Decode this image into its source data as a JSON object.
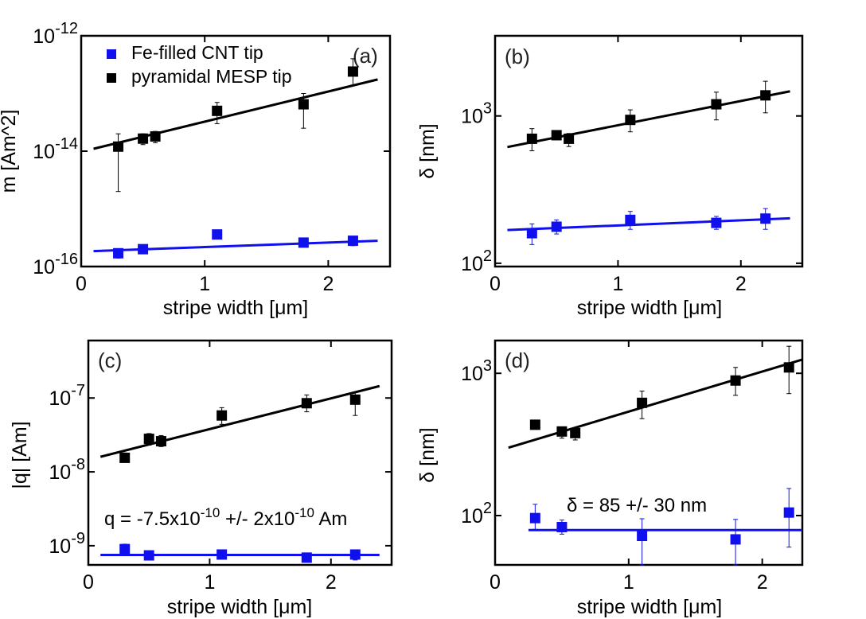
{
  "figure": {
    "colors": {
      "blue": "#1010ee",
      "black": "#000000"
    },
    "legend": [
      {
        "label": "Fe-filled CNT tip",
        "color": "#1010ee"
      },
      {
        "label": "pyramidal MESP tip",
        "color": "#000000"
      }
    ],
    "annotation_c": {
      "pre": "q = -7.5x10",
      "sup1": "-10",
      "mid": " +/- 2x10",
      "sup2": "-10",
      "post": " Am"
    },
    "annotation_d": "δ = 85 +/- 30 nm"
  },
  "chart_data": [
    {
      "panel": "(a)",
      "type": "scatter",
      "yscale": "log",
      "xlabel": "stripe width [μm]",
      "ylabel": "m [Am^2]",
      "xlim": [
        0,
        2.5
      ],
      "ylim": [
        1e-16,
        1e-12
      ],
      "xticks": [
        {
          "v": 0,
          "label": "0"
        },
        {
          "v": 1,
          "label": "1"
        },
        {
          "v": 2,
          "label": "2"
        }
      ],
      "yticks": [
        {
          "v": 1e-16,
          "base": "10",
          "exp": "-16"
        },
        {
          "v": 1e-14,
          "base": "10",
          "exp": "-14"
        },
        {
          "v": 1e-12,
          "base": "10",
          "exp": "-12"
        }
      ],
      "legend_position": "top-left",
      "series": [
        {
          "name": "Fe-filled CNT tip",
          "color": "#1010ee",
          "x": [
            0.3,
            0.5,
            1.1,
            1.8,
            2.2
          ],
          "y": [
            1.7e-16,
            2e-16,
            3.6e-16,
            2.6e-16,
            2.8e-16
          ],
          "err_low": [
            1.4e-16,
            1.7e-16,
            3e-16,
            2.2e-16,
            2.3e-16
          ],
          "err_high": [
            2e-16,
            2.3e-16,
            4.2e-16,
            3e-16,
            3.3e-16
          ],
          "fit_x": [
            0.1,
            2.4
          ],
          "fit_y": [
            1.85e-16,
            2.8e-16
          ]
        },
        {
          "name": "pyramidal MESP tip",
          "color": "#000000",
          "x": [
            0.3,
            0.5,
            0.6,
            1.1,
            1.8,
            2.2
          ],
          "y": [
            1.2e-14,
            1.65e-14,
            1.8e-14,
            5e-14,
            6.5e-14,
            2.4e-13
          ],
          "err_low": [
            2e-15,
            1.3e-14,
            1.4e-14,
            3e-14,
            2.5e-14,
            1.4e-13
          ],
          "err_high": [
            2e-14,
            2e-14,
            2.2e-14,
            7e-14,
            1e-13,
            4e-13
          ],
          "fit_x": [
            0.1,
            2.4
          ],
          "fit_y": [
            1.1e-14,
            1.75e-13
          ]
        }
      ]
    },
    {
      "panel": "(b)",
      "type": "scatter",
      "yscale": "log",
      "xlabel": "stripe width [μm]",
      "ylabel": "δ [nm]",
      "xlim": [
        0,
        2.5
      ],
      "ylim": [
        95,
        3500
      ],
      "xticks": [
        {
          "v": 0,
          "label": "0"
        },
        {
          "v": 1,
          "label": "1"
        },
        {
          "v": 2,
          "label": "2"
        }
      ],
      "yticks": [
        {
          "v": 100,
          "base": "10",
          "exp": "2"
        },
        {
          "v": 1000,
          "base": "10",
          "exp": "3"
        }
      ],
      "series": [
        {
          "name": "Fe-filled CNT tip",
          "color": "#1010ee",
          "x": [
            0.3,
            0.5,
            1.1,
            1.8,
            2.2
          ],
          "y": [
            160,
            177,
            197,
            188,
            201
          ],
          "err_low": [
            134,
            158,
            170,
            170,
            170
          ],
          "err_high": [
            185,
            197,
            225,
            208,
            235
          ],
          "fit_x": [
            0.1,
            2.4
          ],
          "fit_y": [
            168,
            202
          ]
        },
        {
          "name": "pyramidal MESP tip",
          "color": "#000000",
          "x": [
            0.3,
            0.5,
            0.6,
            1.1,
            1.8,
            2.2
          ],
          "y": [
            700,
            740,
            700,
            940,
            1200,
            1380
          ],
          "err_low": [
            580,
            690,
            620,
            780,
            940,
            1050
          ],
          "err_high": [
            820,
            790,
            760,
            1100,
            1450,
            1720
          ],
          "fit_x": [
            0.1,
            2.4
          ],
          "fit_y": [
            615,
            1470
          ]
        }
      ]
    },
    {
      "panel": "(c)",
      "type": "scatter",
      "yscale": "log",
      "xlabel": "stripe width [μm]",
      "ylabel": "|q| [Am]",
      "xlim": [
        0,
        2.5
      ],
      "ylim": [
        5.5e-10,
        6e-07
      ],
      "xticks": [
        {
          "v": 0,
          "label": "0"
        },
        {
          "v": 1,
          "label": "1"
        },
        {
          "v": 2,
          "label": "2"
        }
      ],
      "yticks": [
        {
          "v": 1e-09,
          "base": "10",
          "exp": "-9"
        },
        {
          "v": 1e-08,
          "base": "10",
          "exp": "-8"
        },
        {
          "v": 1e-07,
          "base": "10",
          "exp": "-7"
        }
      ],
      "series": [
        {
          "name": "Fe-filled CNT tip",
          "color": "#1010ee",
          "x": [
            0.3,
            0.5,
            1.1,
            1.8,
            2.2
          ],
          "y": [
            9e-10,
            7.4e-10,
            7.6e-10,
            6.9e-10,
            7.6e-10
          ],
          "err_low": [
            8e-10,
            6.8e-10,
            6.8e-10,
            6e-10,
            6.4e-10
          ],
          "err_high": [
            1.05e-09,
            8.2e-10,
            8.6e-10,
            7.8e-10,
            8.8e-10
          ],
          "fit_x": [
            0.1,
            2.4
          ],
          "fit_y": [
            7.5e-10,
            7.5e-10
          ]
        },
        {
          "name": "pyramidal MESP tip",
          "color": "#000000",
          "x": [
            0.3,
            0.5,
            0.6,
            1.1,
            1.8,
            2.2
          ],
          "y": [
            1.55e-08,
            2.8e-08,
            2.6e-08,
            5.8e-08,
            8.5e-08,
            9.5e-08
          ],
          "err_low": [
            1.35e-08,
            2.3e-08,
            2.2e-08,
            4.4e-08,
            6.5e-08,
            5.8e-08
          ],
          "err_high": [
            1.8e-08,
            3.3e-08,
            3.1e-08,
            7.4e-08,
            1.1e-07,
            1.2e-07
          ],
          "fit_x": [
            0.1,
            2.4
          ],
          "fit_y": [
            1.6e-08,
            1.45e-07
          ]
        }
      ]
    },
    {
      "panel": "(d)",
      "type": "scatter",
      "yscale": "log",
      "xlabel": "stripe width [μm]",
      "ylabel": "δ [nm]",
      "xlim": [
        0,
        2.3
      ],
      "ylim": [
        45,
        1700
      ],
      "xticks": [
        {
          "v": 0,
          "label": "0"
        },
        {
          "v": 1,
          "label": "1"
        },
        {
          "v": 2,
          "label": "2"
        }
      ],
      "yticks": [
        {
          "v": 100,
          "base": "10",
          "exp": "2"
        },
        {
          "v": 1000,
          "base": "10",
          "exp": "3"
        }
      ],
      "series": [
        {
          "name": "Fe-filled CNT tip",
          "color": "#1010ee",
          "x": [
            0.3,
            0.5,
            1.1,
            1.8,
            2.2
          ],
          "y": [
            96,
            83,
            72,
            68,
            105
          ],
          "err_low": [
            80,
            74,
            45,
            45,
            60
          ],
          "err_high": [
            120,
            93,
            95,
            94,
            155
          ],
          "fit_x": [
            0.25,
            2.3
          ],
          "fit_y": [
            79,
            79
          ]
        },
        {
          "name": "pyramidal MESP tip",
          "color": "#000000",
          "x": [
            0.3,
            0.5,
            0.6,
            1.1,
            1.8,
            2.2
          ],
          "y": [
            435,
            390,
            380,
            620,
            890,
            1100
          ],
          "err_low": [
            435,
            350,
            340,
            480,
            700,
            720
          ],
          "err_high": [
            435,
            420,
            410,
            750,
            1100,
            1550
          ],
          "fit_x": [
            0.1,
            2.3
          ],
          "fit_y": [
            300,
            1250
          ]
        }
      ]
    }
  ]
}
